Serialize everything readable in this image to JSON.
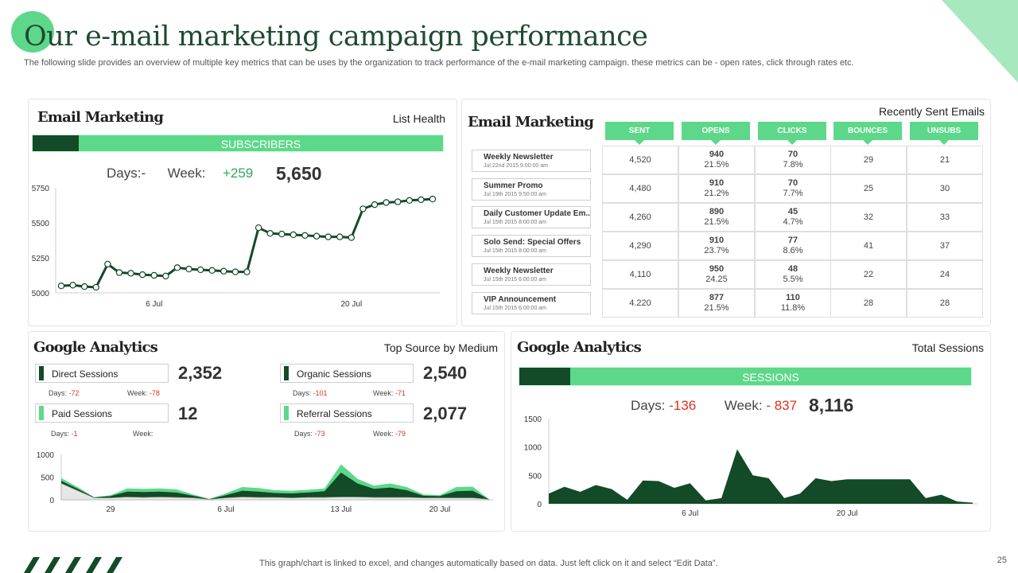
{
  "header": {
    "title": "Our e-mail marketing campaign performance",
    "subtitle": "The following slide provides an overview of multiple key metrics that can be uses by the organization to track performance of the e-mail marketing campaign. these metrics can be - open rates, click through rates etc."
  },
  "list_health": {
    "title": "Email Marketing",
    "label": "List Health",
    "bar_label": "SUBSCRIBERS",
    "days_label": "Days:-",
    "week_label": "Week:",
    "week_value": "+259",
    "total": "5,650"
  },
  "recent_emails": {
    "title": "Email Marketing",
    "label": "Recently Sent Emails",
    "columns": [
      "SENT",
      "OPENS",
      "CLICKS",
      "BOUNCES",
      "UNSUBS"
    ],
    "emails": [
      {
        "name": "Weekly Newsletter",
        "date": "Jul 22nd 2015 9:00:00 am"
      },
      {
        "name": "Summer Promo",
        "date": "Jul 19th 2015 9:50:00 am"
      },
      {
        "name": "Daily Customer Update Em..",
        "date": "Jul 15th 2015 8:00:00 am"
      },
      {
        "name": "Solo Send: Special Offers",
        "date": "Jul 15th 2015 8:00:00 am"
      },
      {
        "name": "Weekly Newsletter",
        "date": "Jul 15th 2015 6:00:00 am"
      },
      {
        "name": "VIP Announcement",
        "date": "Jul 15th 2015 6:00:00 am"
      }
    ],
    "rows": [
      {
        "sent": "4,520",
        "opens": "940",
        "opens_pct": "21.5%",
        "clicks": "70",
        "clicks_pct": "7.8%",
        "bounces": "29",
        "unsubs": "21"
      },
      {
        "sent": "4,480",
        "opens": "910",
        "opens_pct": "21.2%",
        "clicks": "70",
        "clicks_pct": "7.7%",
        "bounces": "25",
        "unsubs": "30"
      },
      {
        "sent": "4,260",
        "opens": "890",
        "opens_pct": "21.5%",
        "clicks": "45",
        "clicks_pct": "4.7%",
        "bounces": "32",
        "unsubs": "33"
      },
      {
        "sent": "4,290",
        "opens": "910",
        "opens_pct": "23.7%",
        "clicks": "77",
        "clicks_pct": "8.6%",
        "bounces": "41",
        "unsubs": "37"
      },
      {
        "sent": "4,110",
        "opens": "950",
        "opens_pct": "24.25",
        "clicks": "48",
        "clicks_pct": "5.5%",
        "bounces": "22",
        "unsubs": "24"
      },
      {
        "sent": "4.220",
        "opens": "877",
        "opens_pct": "21.5%",
        "clicks": "110",
        "clicks_pct": "11.8%",
        "bounces": "28",
        "unsubs": "28"
      }
    ]
  },
  "top_source": {
    "title": "Google Analytics",
    "label": "Top Source by Medium",
    "sessions": [
      {
        "name": "Direct Sessions",
        "value": "2,352",
        "days_label": "Days:",
        "days": "-72",
        "week_label": "Week:",
        "week": "-78",
        "color": "#134a27"
      },
      {
        "name": "Organic Sessions",
        "value": "2,540",
        "days_label": "Days:",
        "days": "-101",
        "week_label": "Week:",
        "week": "-71",
        "color": "#134a27"
      },
      {
        "name": "Paid Sessions",
        "value": "12",
        "days_label": "Days:",
        "days": "-1",
        "week_label": "Week:",
        "week": "",
        "color": "#5dd88a"
      },
      {
        "name": "Referral Sessions",
        "value": "2,077",
        "days_label": "Days:",
        "days": "-73",
        "week_label": "Week:",
        "week": "-79",
        "color": "#5dd88a"
      }
    ]
  },
  "total_sessions": {
    "title": "Google Analytics",
    "label": "Total Sessions",
    "bar_label": "SESSIONS",
    "days_label": "Days:",
    "days": "-136",
    "week_label": "Week:",
    "week": "- 837",
    "total": "8,116"
  },
  "footer": {
    "note": "This graph/chart is linked to excel,  and changes automatically based on data. Just left click on it and select “Edit Data”.",
    "page": "25"
  },
  "colors": {
    "accent": "#5dd88a",
    "dark": "#134a27",
    "negative": "#e0311d",
    "positive": "#2faa55"
  },
  "chart_data": [
    {
      "id": "subscribers",
      "type": "line",
      "title": "Subscribers",
      "x_ticks": [
        "6 Jul",
        "20 Jul"
      ],
      "x_tick_index": [
        8,
        25
      ],
      "y_ticks": [
        5000,
        5250,
        5500,
        5750
      ],
      "ylim": [
        5000,
        5750
      ],
      "values": [
        5050,
        5055,
        5045,
        5040,
        5205,
        5145,
        5140,
        5130,
        5125,
        5120,
        5180,
        5170,
        5165,
        5160,
        5155,
        5150,
        5150,
        5465,
        5425,
        5420,
        5415,
        5410,
        5405,
        5400,
        5400,
        5395,
        5600,
        5630,
        5645,
        5650,
        5660,
        5665,
        5670
      ]
    },
    {
      "id": "top_source",
      "type": "area",
      "title": "Top Source by Medium",
      "x_ticks": [
        "29",
        "6 Jul",
        "13 Jul",
        "20 Jul"
      ],
      "x_tick_index": [
        3,
        10,
        17,
        23
      ],
      "y_ticks": [
        0,
        500,
        1000
      ],
      "ylim": [
        0,
        1000
      ],
      "series": [
        {
          "name": "Referral",
          "color": "#5dd88a",
          "values": [
            480,
            280,
            60,
            100,
            250,
            240,
            250,
            230,
            120,
            20,
            140,
            280,
            260,
            210,
            200,
            220,
            250,
            780,
            460,
            310,
            360,
            280,
            120,
            100,
            280,
            290,
            10
          ]
        },
        {
          "name": "Direct",
          "color": "#134a27",
          "values": [
            420,
            240,
            50,
            80,
            180,
            170,
            180,
            160,
            90,
            15,
            100,
            200,
            180,
            150,
            140,
            160,
            190,
            600,
            360,
            240,
            270,
            210,
            90,
            80,
            190,
            200,
            10
          ]
        },
        {
          "name": "Organic",
          "color": "#e6e6e6",
          "values": [
            360,
            200,
            40,
            40,
            60,
            50,
            60,
            50,
            40,
            10,
            40,
            60,
            50,
            50,
            40,
            50,
            50,
            60,
            60,
            50,
            50,
            50,
            40,
            40,
            40,
            40,
            10
          ]
        }
      ]
    },
    {
      "id": "total_sessions",
      "type": "area",
      "title": "Total Sessions",
      "x_ticks": [
        "6 Jul",
        "20 Jul"
      ],
      "x_tick_index": [
        9,
        19
      ],
      "y_ticks": [
        0,
        500,
        1000,
        1500
      ],
      "ylim": [
        0,
        1500
      ],
      "series": [
        {
          "name": "Sessions",
          "color": "#134a27",
          "values": [
            180,
            300,
            210,
            330,
            260,
            70,
            410,
            400,
            280,
            360,
            60,
            100,
            960,
            500,
            450,
            100,
            180,
            450,
            400,
            430,
            430,
            430,
            430,
            430,
            100,
            160,
            40,
            20
          ]
        }
      ]
    }
  ]
}
